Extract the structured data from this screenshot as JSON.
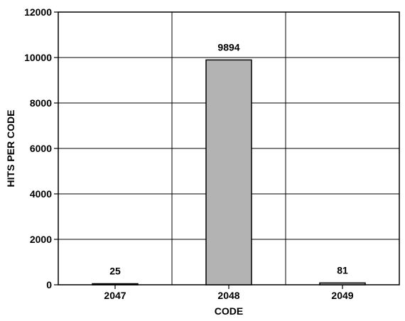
{
  "chart_data": {
    "type": "bar",
    "categories": [
      "2047",
      "2048",
      "2049"
    ],
    "values": [
      25,
      9894,
      81
    ],
    "data_labels": [
      "25",
      "9894",
      "81"
    ],
    "xlabel": "CODE",
    "ylabel": "HITS PER CODE",
    "ylim": [
      0,
      12000
    ],
    "yticks": [
      "0",
      "2000",
      "4000",
      "6000",
      "8000",
      "10000",
      "12000"
    ],
    "grid": true,
    "colors": {
      "bar": "#b3b3b3",
      "outline": "#000000"
    }
  }
}
